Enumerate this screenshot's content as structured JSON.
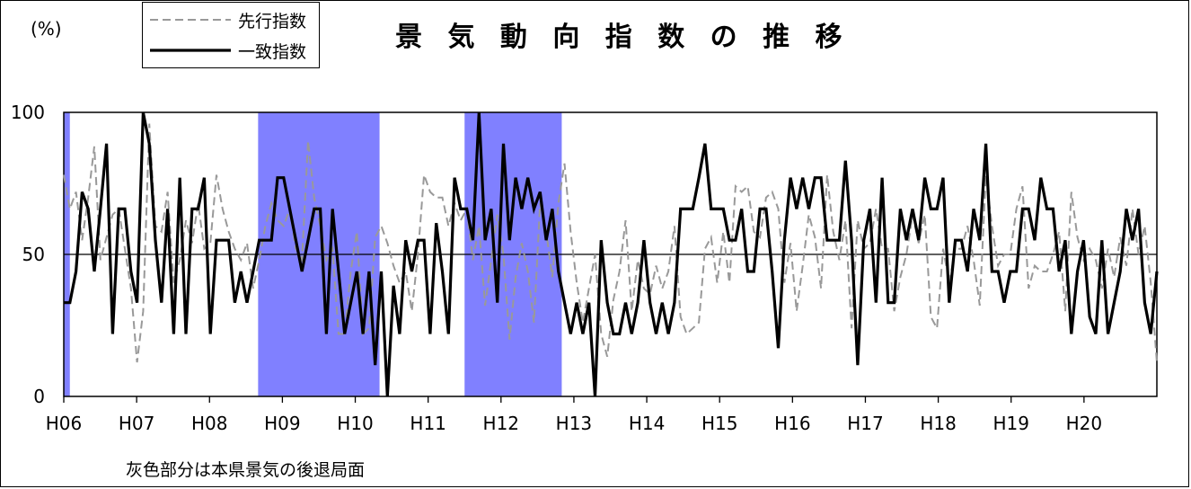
{
  "chart_data": {
    "type": "line",
    "title": "景 気 動 向 指 数 の 推 移",
    "ylabel": "(%)",
    "ylim": [
      0,
      100
    ],
    "yticks": [
      0,
      50,
      100
    ],
    "xlim": [
      0,
      180
    ],
    "x_ticks": [
      "H06",
      "H07",
      "H08",
      "H09",
      "H10",
      "H11",
      "H12",
      "H13",
      "H14",
      "H15",
      "H16",
      "H17",
      "H18",
      "H19",
      "H20"
    ],
    "reference_line": 50,
    "shaded_periods": [
      [
        0,
        1
      ],
      [
        32,
        52
      ],
      [
        66,
        82
      ]
    ],
    "shade_color": "#8080ff",
    "legend_placement": "top-left",
    "note": "灰色部分は本県景気の後退局面",
    "series": [
      {
        "name": "先行指数",
        "style": "dashed",
        "color": "#999999",
        "values": [
          78,
          66,
          72,
          55,
          70,
          88,
          48,
          56,
          64,
          66,
          52,
          38,
          12,
          30,
          96,
          60,
          58,
          72,
          40,
          48,
          62,
          54,
          68,
          52,
          54,
          78,
          66,
          58,
          52,
          48,
          54,
          38,
          48,
          60,
          68,
          62,
          60,
          66,
          52,
          48,
          90,
          70,
          60,
          48,
          52,
          22,
          22,
          44,
          58,
          22,
          24,
          56,
          60,
          54,
          46,
          40,
          44,
          30,
          50,
          78,
          72,
          70,
          70,
          60,
          68,
          62,
          66,
          48,
          60,
          32,
          48,
          64,
          50,
          20,
          42,
          54,
          44,
          26,
          68,
          58,
          42,
          68,
          82,
          58,
          40,
          26,
          38,
          50,
          22,
          14,
          34,
          44,
          62,
          30,
          48,
          38,
          36,
          46,
          38,
          44,
          60,
          28,
          22,
          24,
          26,
          52,
          56,
          40,
          58,
          40,
          74,
          72,
          74,
          58,
          56,
          70,
          72,
          66,
          40,
          54,
          30,
          46,
          64,
          56,
          38,
          78,
          58,
          48,
          62,
          24,
          62,
          52,
          54,
          66,
          52,
          52,
          30,
          42,
          50,
          64,
          54,
          64,
          28,
          24,
          52,
          40,
          52,
          52,
          60,
          48,
          32,
          78,
          60,
          46,
          50,
          50,
          66,
          74,
          38,
          46,
          44,
          44,
          50,
          58,
          30,
          72,
          56,
          48,
          52,
          48,
          38,
          52,
          42,
          56,
          46,
          66,
          50,
          60,
          40,
          12
        ]
      },
      {
        "name": "一致指数",
        "style": "solid",
        "color": "#000000",
        "values": [
          33,
          33,
          44,
          72,
          66,
          44,
          66,
          89,
          22,
          66,
          66,
          44,
          33,
          100,
          89,
          55,
          33,
          66,
          22,
          77,
          22,
          66,
          66,
          77,
          22,
          55,
          55,
          55,
          33,
          44,
          33,
          44,
          55,
          55,
          55,
          77,
          77,
          66,
          55,
          44,
          55,
          66,
          66,
          22,
          66,
          44,
          22,
          33,
          44,
          22,
          44,
          11,
          44,
          0,
          39,
          22,
          55,
          44,
          55,
          55,
          22,
          61,
          44,
          22,
          77,
          66,
          66,
          55,
          100,
          55,
          66,
          33,
          89,
          55,
          77,
          66,
          77,
          66,
          72,
          55,
          66,
          44,
          33,
          22,
          33,
          22,
          33,
          0,
          55,
          33,
          22,
          22,
          33,
          22,
          33,
          55,
          33,
          22,
          33,
          22,
          33,
          66,
          66,
          66,
          77,
          89,
          66,
          66,
          66,
          55,
          55,
          66,
          44,
          44,
          66,
          66,
          44,
          17,
          55,
          77,
          66,
          77,
          66,
          77,
          77,
          55,
          55,
          55,
          83,
          55,
          11,
          55,
          66,
          33,
          77,
          33,
          33,
          66,
          55,
          66,
          55,
          77,
          66,
          66,
          77,
          33,
          55,
          55,
          44,
          66,
          55,
          89,
          44,
          44,
          33,
          44,
          44,
          66,
          66,
          55,
          77,
          66,
          66,
          44,
          55,
          22,
          44,
          55,
          28,
          22,
          55,
          22,
          33,
          44,
          66,
          55,
          66,
          33,
          22,
          44
        ]
      }
    ]
  }
}
